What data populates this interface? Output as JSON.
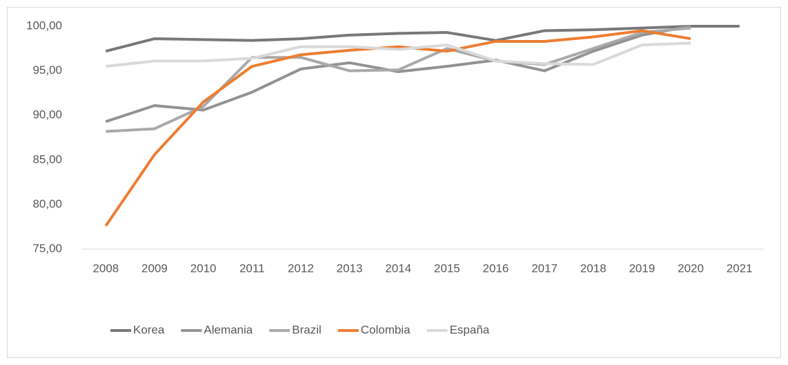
{
  "chart_data": {
    "type": "line",
    "categories": [
      "2008",
      "2009",
      "2010",
      "2011",
      "2012",
      "2013",
      "2014",
      "2015",
      "2016",
      "2017",
      "2018",
      "2019",
      "2020",
      "2021"
    ],
    "series": [
      {
        "name": "Korea",
        "color": "#787878",
        "values": [
          97.2,
          98.6,
          98.5,
          98.4,
          98.6,
          99.0,
          99.2,
          99.3,
          98.4,
          99.5,
          99.6,
          99.8,
          100,
          100
        ]
      },
      {
        "name": "Alemania",
        "color": "#929292",
        "values": [
          89.3,
          91.1,
          90.6,
          92.6,
          95.2,
          95.9,
          94.9,
          95.5,
          96.2,
          95.0,
          97.2,
          99.0,
          100,
          null
        ]
      },
      {
        "name": "Brazil",
        "color": "#a9a9a9",
        "values": [
          88.2,
          88.5,
          91.0,
          96.5,
          96.5,
          95.0,
          95.1,
          97.5,
          96.1,
          95.7,
          97.5,
          99.3,
          99.8,
          null
        ]
      },
      {
        "name": "Colombia",
        "color": "#ed7d31",
        "values": [
          77.6,
          85.6,
          91.5,
          95.5,
          96.8,
          97.3,
          97.7,
          97.2,
          98.3,
          98.3,
          98.8,
          99.5,
          98.6,
          null
        ]
      },
      {
        "name": "España",
        "color": "#d9d9d9",
        "values": [
          95.5,
          96.1,
          96.1,
          96.4,
          97.7,
          97.7,
          97.4,
          97.9,
          96.1,
          95.8,
          95.7,
          97.9,
          98.1,
          null
        ]
      }
    ],
    "ylim": [
      75,
      100
    ],
    "yticks": [
      {
        "value": 75,
        "label": "75,00"
      },
      {
        "value": 80,
        "label": "80,00"
      },
      {
        "value": 85,
        "label": "85,00"
      },
      {
        "value": 90,
        "label": "90,00"
      },
      {
        "value": 95,
        "label": "95,00"
      },
      {
        "value": 100,
        "label": "100,00"
      }
    ],
    "legend": "bottom"
  }
}
